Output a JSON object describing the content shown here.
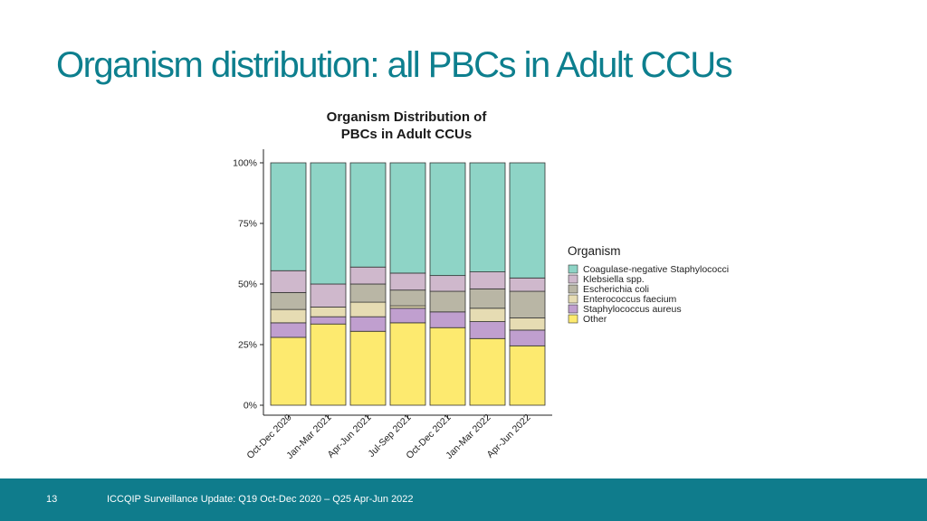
{
  "slide": {
    "title": "Organism distribution: all PBCs in Adult CCUs",
    "page_number": "13",
    "footer": "ICCQIP Surveillance Update: Q19 Oct-Dec 2020 – Q25 Apr-Jun 2022"
  },
  "chart_data": {
    "type": "bar",
    "stacked": true,
    "title": "Organism Distribution of\nPBCs in Adult CCUs",
    "xlabel": "",
    "ylabel": "",
    "ylim": [
      0,
      100
    ],
    "yticks": [
      "0%",
      "25%",
      "50%",
      "75%",
      "100%"
    ],
    "categories": [
      "Oct-Dec 2020",
      "Jan-Mar 2021",
      "Apr-Jun 2021",
      "Jul-Sep 2021",
      "Oct-Dec 2021",
      "Jan-Mar 2022",
      "Apr-Jun 2022"
    ],
    "legend_title": "Organism",
    "legend_position": "right",
    "grid": false,
    "series": [
      {
        "name": "Other",
        "color": "#fdea6f",
        "values": [
          28,
          33.5,
          30.5,
          34,
          32,
          27.5,
          24.5
        ]
      },
      {
        "name": "Staphylococcus aureus",
        "color": "#c09fcf",
        "values": [
          6,
          3,
          6,
          6,
          6.5,
          7,
          6.5
        ]
      },
      {
        "name": "Enterococcus faecium",
        "color": "#e6dcb3",
        "values": [
          5.5,
          4,
          6,
          1,
          0,
          5.5,
          5
        ]
      },
      {
        "name": "Escherichia coli",
        "color": "#b9b6a5",
        "values": [
          7,
          0,
          7.5,
          6.5,
          8.5,
          8,
          11
        ]
      },
      {
        "name": "Klebsiella spp.",
        "color": "#cfb8cc",
        "values": [
          9,
          9.5,
          7,
          7,
          6.5,
          7,
          5.5
        ]
      },
      {
        "name": "Coagulase-negative Staphylococci",
        "color": "#8ed4c6",
        "values": [
          44.5,
          50,
          43,
          45.5,
          46.5,
          45,
          47.5
        ]
      }
    ],
    "legend_order": [
      "Coagulase-negative Staphylococci",
      "Klebsiella spp.",
      "Escherichia coli",
      "Enterococcus faecium",
      "Staphylococcus aureus",
      "Other"
    ]
  }
}
